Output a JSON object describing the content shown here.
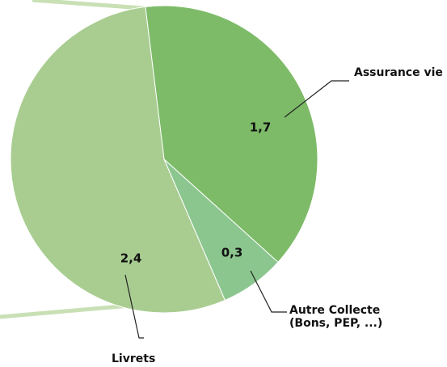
{
  "chart_data": {
    "type": "pie",
    "categories": [
      "Assurance vie",
      "Autre Collecte (Bons, PEP, ...)",
      "Livrets"
    ],
    "values": [
      1.7,
      0.3,
      2.4
    ],
    "value_labels": [
      "1,7",
      "0,3",
      "2,4"
    ],
    "colors": [
      "#7dbb68",
      "#8cc68f",
      "#a9cd91"
    ]
  }
}
